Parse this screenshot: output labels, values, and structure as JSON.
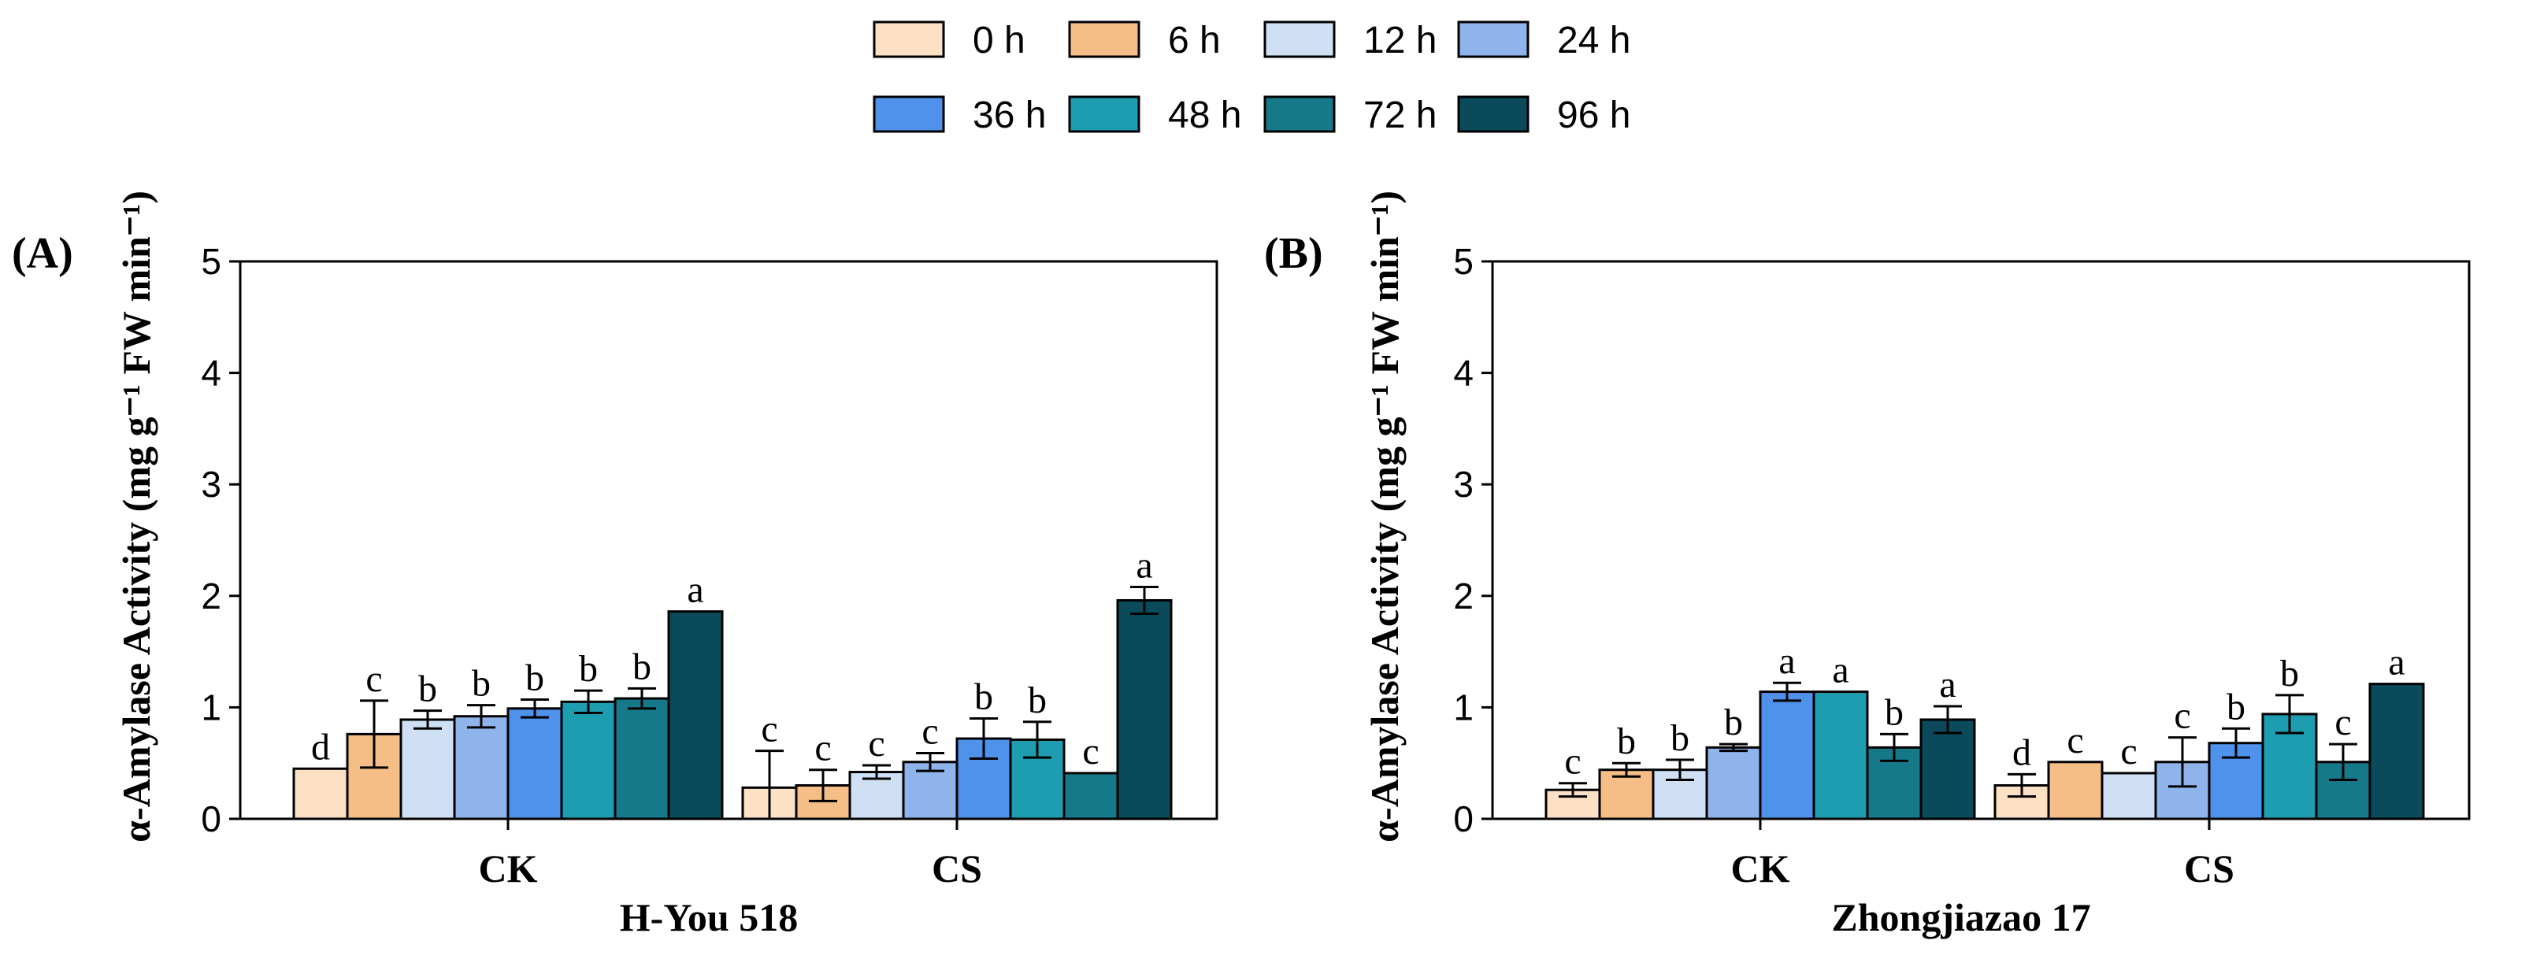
{
  "chart_data": {
    "type": "bar",
    "legend": {
      "placement": "top-center",
      "entries": [
        {
          "label": "0 h",
          "color": "#fde1c4"
        },
        {
          "label": "6 h",
          "color": "#f6be87"
        },
        {
          "label": "12 h",
          "color": "#cfe0f5"
        },
        {
          "label": "24 h",
          "color": "#8fb4ec"
        },
        {
          "label": "36 h",
          "color": "#4f92ec"
        },
        {
          "label": "48 h",
          "color": "#1f9db0"
        },
        {
          "label": "72 h",
          "color": "#16798a"
        },
        {
          "label": "96 h",
          "color": "#0b4a5a"
        }
      ]
    },
    "panels": [
      {
        "panel_label": "(A)",
        "title": "H-You 518",
        "ylabel": "α-Amylase Activity (mg g⁻¹ FW min⁻¹)",
        "ylim": [
          0,
          5
        ],
        "yticks": [
          "0",
          "1",
          "2",
          "3",
          "4",
          "5"
        ],
        "categories": [
          "CK",
          "CS"
        ],
        "series": [
          {
            "name": "0 h",
            "values": [
              0.45,
              0.28
            ],
            "errors": [
              0.0,
              0.33
            ],
            "letters": [
              "d",
              "c"
            ]
          },
          {
            "name": "6 h",
            "values": [
              0.76,
              0.3
            ],
            "errors": [
              0.3,
              0.14
            ],
            "letters": [
              "c",
              "c"
            ]
          },
          {
            "name": "12 h",
            "values": [
              0.89,
              0.42
            ],
            "errors": [
              0.08,
              0.06
            ],
            "letters": [
              "b",
              "c"
            ]
          },
          {
            "name": "24 h",
            "values": [
              0.92,
              0.51
            ],
            "errors": [
              0.1,
              0.08
            ],
            "letters": [
              "b",
              "c"
            ]
          },
          {
            "name": "36 h",
            "values": [
              0.99,
              0.72
            ],
            "errors": [
              0.08,
              0.18
            ],
            "letters": [
              "b",
              "b"
            ]
          },
          {
            "name": "48 h",
            "values": [
              1.05,
              0.71
            ],
            "errors": [
              0.1,
              0.16
            ],
            "letters": [
              "b",
              "b"
            ]
          },
          {
            "name": "72 h",
            "values": [
              1.08,
              0.41
            ],
            "errors": [
              0.09,
              0.0
            ],
            "letters": [
              "b",
              "c"
            ]
          },
          {
            "name": "96 h",
            "values": [
              1.86,
              1.96
            ],
            "errors": [
              0.0,
              0.12
            ],
            "letters": [
              "a",
              "a"
            ]
          }
        ]
      },
      {
        "panel_label": "(B)",
        "title": "Zhongjiazao 17",
        "ylabel": "α-Amylase Activity (mg g⁻¹ FW min⁻¹)",
        "ylim": [
          0,
          5
        ],
        "yticks": [
          "0",
          "1",
          "2",
          "3",
          "4",
          "5"
        ],
        "categories": [
          "CK",
          "CS"
        ],
        "series": [
          {
            "name": "0 h",
            "values": [
              0.26,
              0.3
            ],
            "errors": [
              0.06,
              0.1
            ],
            "letters": [
              "c",
              "d"
            ]
          },
          {
            "name": "6 h",
            "values": [
              0.44,
              0.51
            ],
            "errors": [
              0.06,
              0.0
            ],
            "letters": [
              "b",
              "c"
            ]
          },
          {
            "name": "12 h",
            "values": [
              0.44,
              0.41
            ],
            "errors": [
              0.09,
              0.0
            ],
            "letters": [
              "b",
              "c"
            ]
          },
          {
            "name": "24 h",
            "values": [
              0.64,
              0.51
            ],
            "errors": [
              0.03,
              0.22
            ],
            "letters": [
              "b",
              "c"
            ]
          },
          {
            "name": "36 h",
            "values": [
              1.14,
              0.68
            ],
            "errors": [
              0.08,
              0.13
            ],
            "letters": [
              "a",
              "b"
            ]
          },
          {
            "name": "48 h",
            "values": [
              1.14,
              0.94
            ],
            "errors": [
              0.0,
              0.17
            ],
            "letters": [
              "a",
              "b"
            ]
          },
          {
            "name": "72 h",
            "values": [
              0.64,
              0.51
            ],
            "errors": [
              0.12,
              0.16
            ],
            "letters": [
              "b",
              "c"
            ]
          },
          {
            "name": "96 h",
            "values": [
              0.89,
              1.21
            ],
            "errors": [
              0.12,
              0.0
            ],
            "letters": [
              "a",
              "a"
            ]
          }
        ]
      }
    ]
  }
}
